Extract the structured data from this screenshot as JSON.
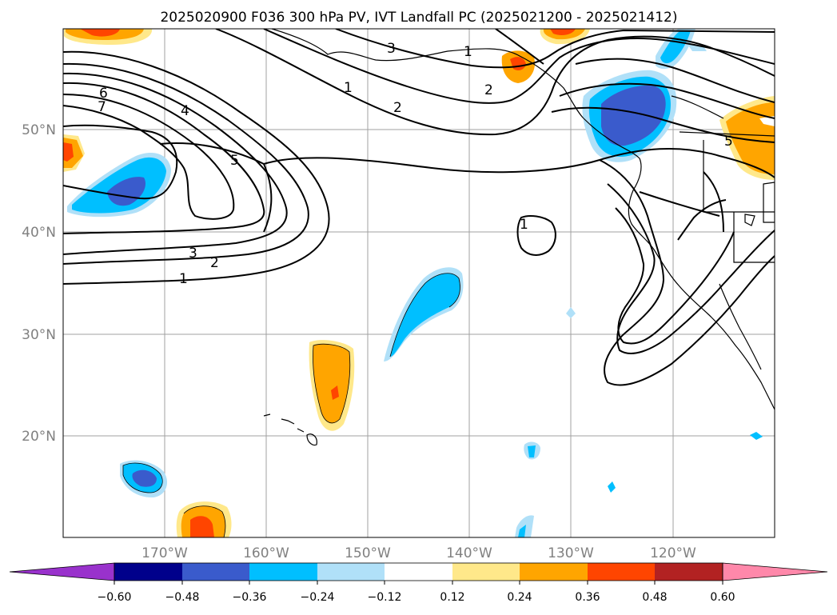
{
  "title": "2025020900 F036 300 hPa PV, IVT Landfall PC (2025021200 - 2025021412)",
  "map": {
    "lat_labels": [
      "50°N",
      "40°N",
      "30°N",
      "20°N"
    ],
    "lon_labels": [
      "170°W",
      "160°W",
      "150°W",
      "140°W",
      "130°W",
      "120°W"
    ],
    "grid": true,
    "contour_labels": [
      "6",
      "7",
      "4",
      "5",
      "3",
      "2",
      "1",
      "1",
      "2",
      "3",
      "1",
      "2",
      "1",
      "5"
    ]
  },
  "colorbar": {
    "ticks": [
      "−0.60",
      "−0.48",
      "−0.36",
      "−0.24",
      "−0.12",
      "0.12",
      "0.24",
      "0.36",
      "0.48",
      "0.60"
    ],
    "colors": [
      "#9932cc",
      "#00008b",
      "#3a5bcc",
      "#00bfff",
      "#b0e0f8",
      "#ffffff",
      "#ffe88a",
      "#ffa500",
      "#ff4500",
      "#b22222",
      "#ff88aa"
    ],
    "extend": "both"
  },
  "colors": {
    "land_outline": "#000000",
    "grid": "#a0a0a0",
    "axis_label": "#808080"
  }
}
